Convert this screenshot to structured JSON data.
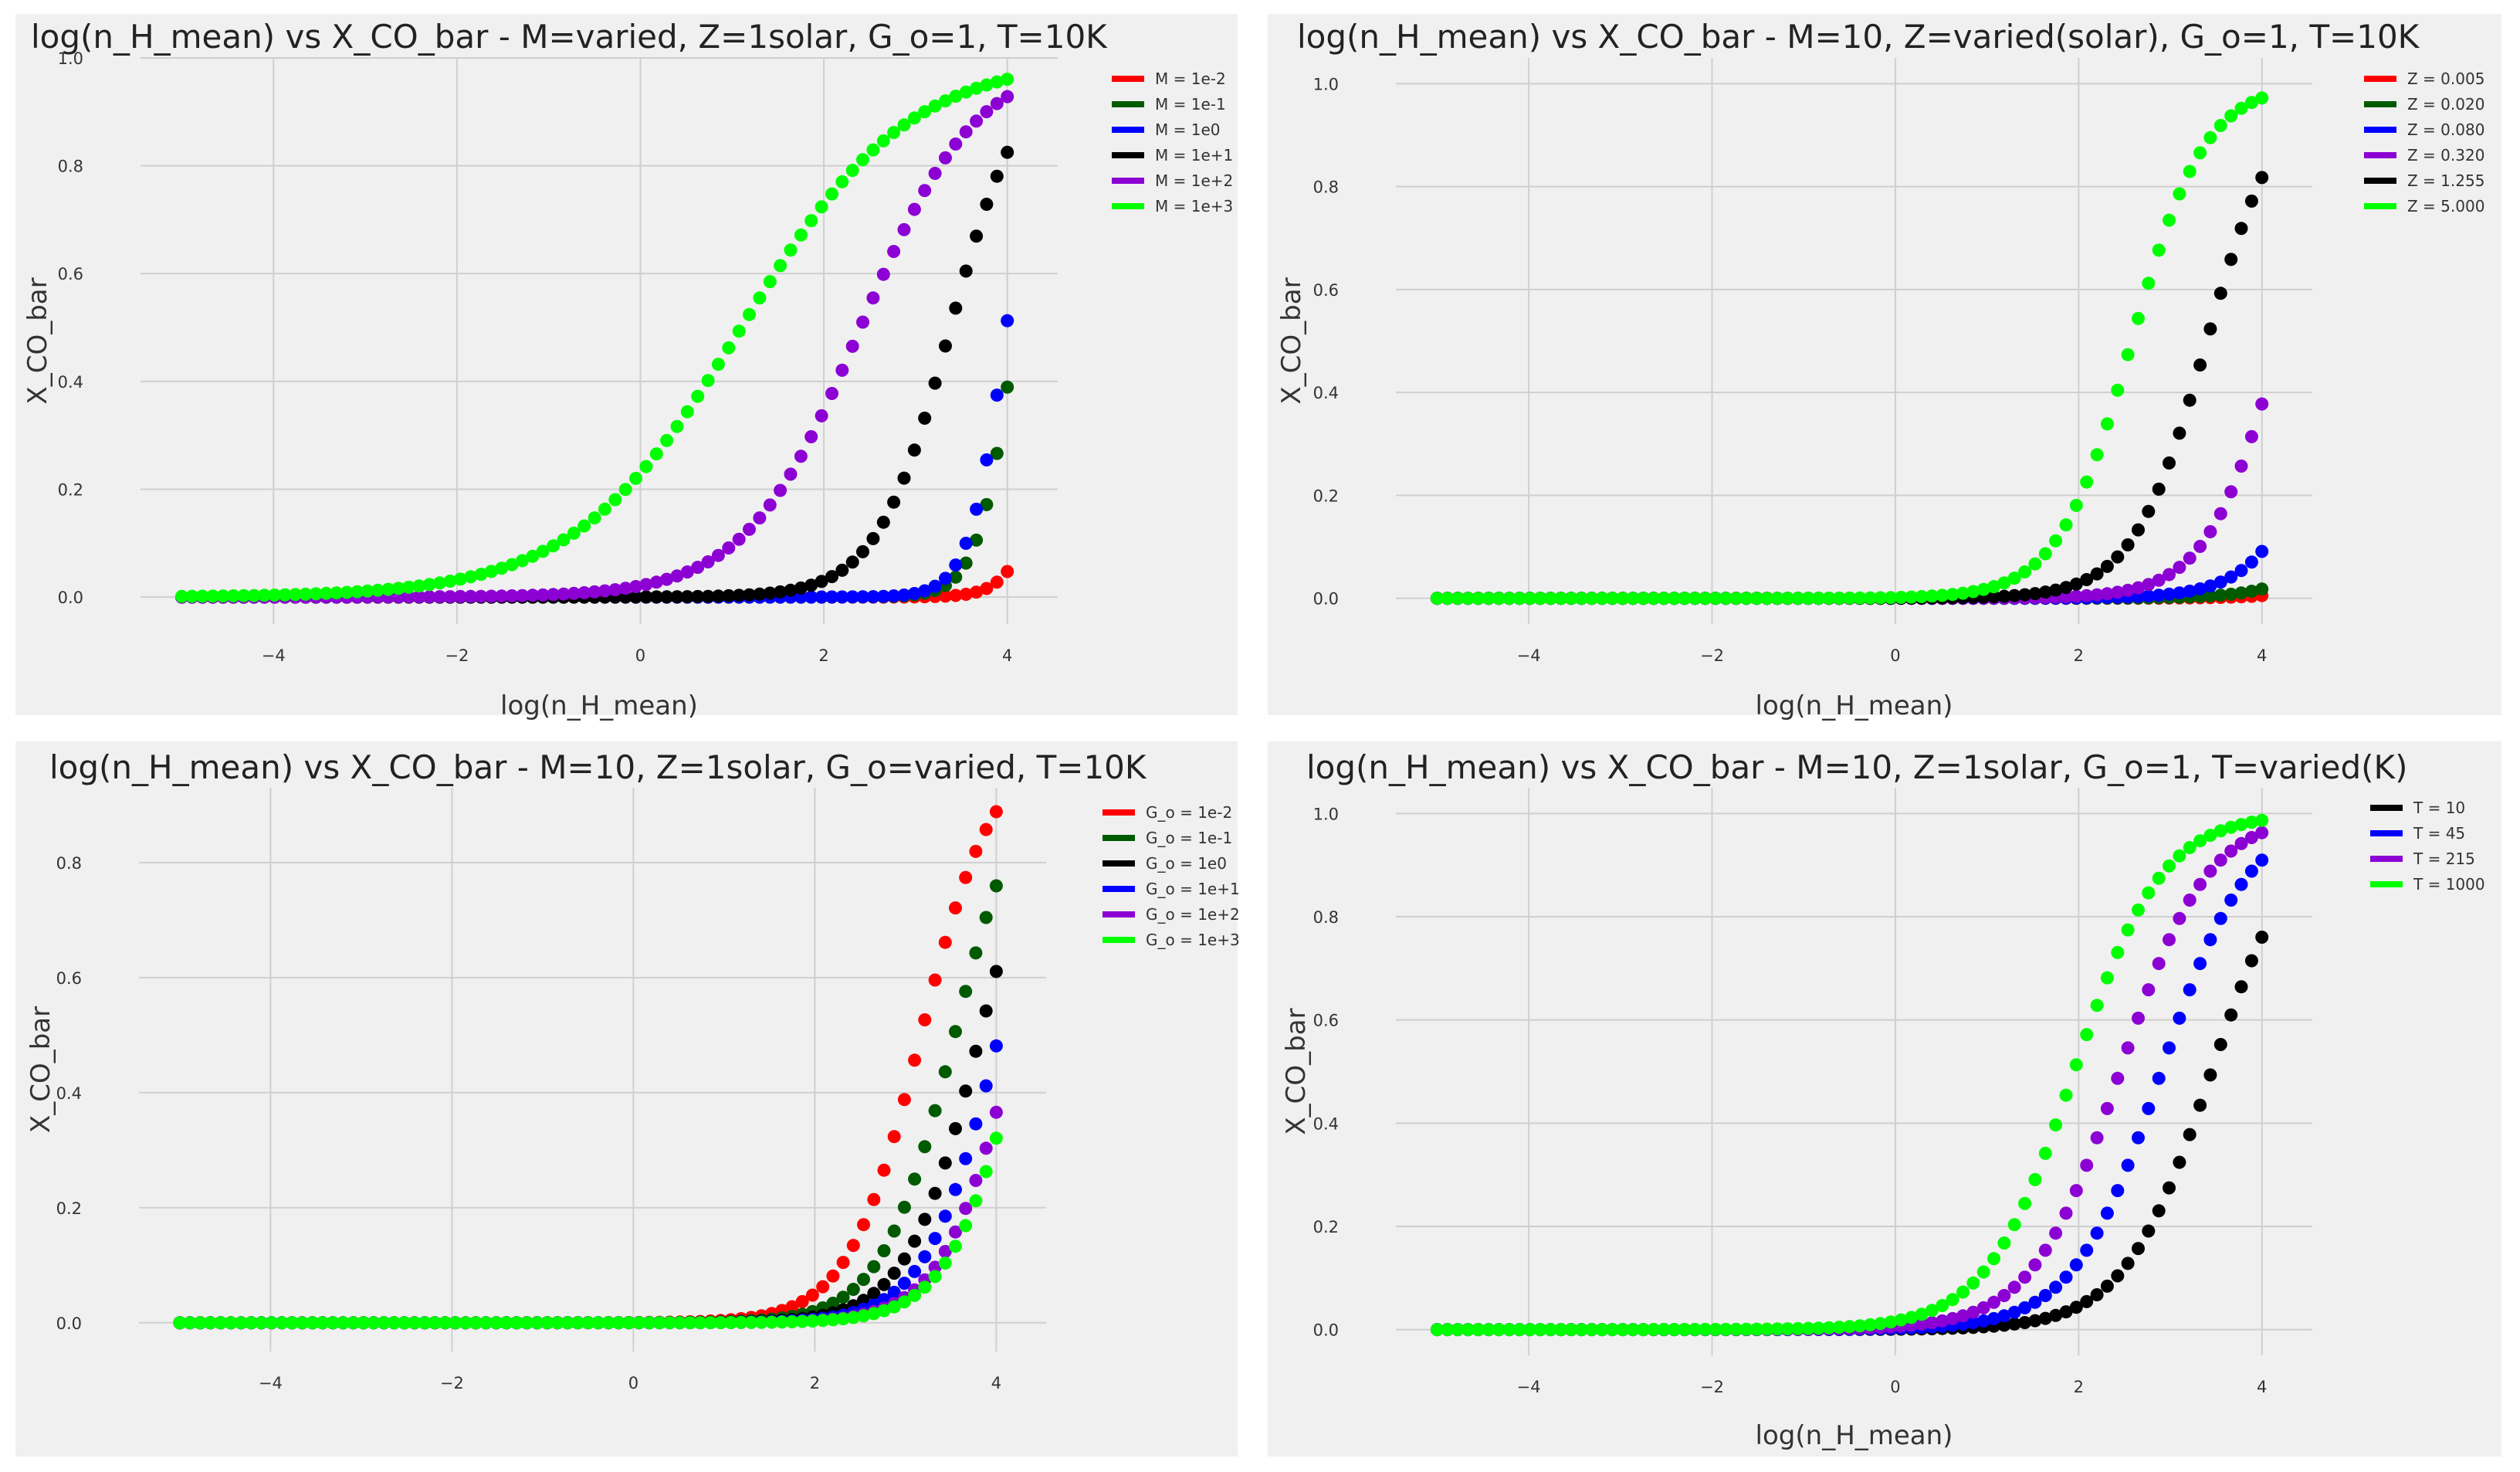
{
  "colors": {
    "red": "#ff0000",
    "darkgreen": "#005a00",
    "blue": "#0000ff",
    "black": "#000000",
    "purple": "#8c00d4",
    "lime": "#00ff00",
    "panel_bg": "#f0f0f0",
    "grid": "#cfcfcf"
  },
  "chart_data": [
    {
      "type": "scatter",
      "title": "log(n_H_mean) vs X_CO_bar - M=varied, Z=1solar, G_o=1, T=10K",
      "xlabel": "log(n_H_mean)",
      "ylabel": "X_CO_bar",
      "xlim": [
        -5.45,
        4.55
      ],
      "ylim": [
        -0.05,
        1.0
      ],
      "xticks": [
        -4,
        -2,
        0,
        2,
        4
      ],
      "yticks": [
        0.0,
        0.2,
        0.4,
        0.6,
        0.8,
        1.0
      ],
      "ytick_labels": [
        "0.0",
        "0.2",
        "0.4",
        "0.6",
        "0.8",
        "1.0"
      ],
      "grid": true,
      "legend_position": "top-right",
      "x_range": [
        -5,
        4
      ],
      "n_points": 81,
      "series": [
        {
          "name": "M = 1e-2",
          "color": "red",
          "curve": {
            "ymax": 1.0,
            "x50": 4.6,
            "k": 5.0
          }
        },
        {
          "name": "M = 1e-1",
          "color": "darkgreen",
          "curve": {
            "ymax": 1.0,
            "x50": 4.09,
            "k": 5.0
          }
        },
        {
          "name": "M = 1e0",
          "color": "blue",
          "curve": {
            "ymax": 1.0,
            "x50": 3.99,
            "k": 5.0
          }
        },
        {
          "name": "M = 1e+1",
          "color": "black",
          "curve": {
            "ymax": 1.0,
            "x50": 3.38,
            "k": 2.5
          }
        },
        {
          "name": "M = 1e+2",
          "color": "purple",
          "curve": {
            "ymax": 1.0,
            "x50": 2.4,
            "k": 1.6
          }
        },
        {
          "name": "M = 1e+3",
          "color": "lime",
          "curve": {
            "ymax": 1.0,
            "x50": 1.1,
            "k": 1.1
          }
        }
      ]
    },
    {
      "type": "scatter",
      "title": "log(n_H_mean) vs X_CO_bar - M=10, Z=varied(solar), G_o=1, T=10K",
      "xlabel": "log(n_H_mean)",
      "ylabel": "X_CO_bar",
      "xlim": [
        -5.45,
        4.55
      ],
      "ylim": [
        -0.05,
        1.05
      ],
      "xticks": [
        -4,
        -2,
        0,
        2,
        4
      ],
      "yticks": [
        0.0,
        0.2,
        0.4,
        0.6,
        0.8,
        1.0
      ],
      "ytick_labels": [
        "0.0",
        "0.2",
        "0.4",
        "0.6",
        "0.8",
        "1.0"
      ],
      "grid": true,
      "legend_position": "top-right",
      "x_range": [
        -5,
        4
      ],
      "n_points": 81,
      "series": [
        {
          "name": "Z = 0.005",
          "color": "red",
          "curve": {
            "ymax": 1.0,
            "x50": 6.1,
            "k": 2.5
          }
        },
        {
          "name": "Z = 0.020",
          "color": "darkgreen",
          "curve": {
            "ymax": 1.0,
            "x50": 5.6,
            "k": 2.5
          }
        },
        {
          "name": "Z = 0.080",
          "color": "blue",
          "curve": {
            "ymax": 1.0,
            "x50": 4.92,
            "k": 2.5
          }
        },
        {
          "name": "Z = 0.320",
          "color": "purple",
          "curve": {
            "ymax": 1.0,
            "x50": 4.2,
            "k": 2.5
          }
        },
        {
          "name": "Z = 1.255",
          "color": "black",
          "curve": {
            "ymax": 1.0,
            "x50": 3.4,
            "k": 2.5
          }
        },
        {
          "name": "Z = 5.000",
          "color": "lime",
          "curve": {
            "ymax": 1.0,
            "x50": 2.58,
            "k": 2.5
          }
        }
      ]
    },
    {
      "type": "scatter",
      "title": "log(n_H_mean) vs X_CO_bar - M=10, Z=1solar, G_o=varied, T=10K",
      "xlabel": "",
      "ylabel": "X_CO_bar",
      "xlim": [
        -5.45,
        4.55
      ],
      "ylim": [
        -0.05,
        0.93
      ],
      "xticks": [
        -4,
        -2,
        0,
        2,
        4
      ],
      "yticks": [
        0.0,
        0.2,
        0.4,
        0.6,
        0.8
      ],
      "ytick_labels": [
        "0.0",
        "0.2",
        "0.4",
        "0.6",
        "0.8"
      ],
      "grid": true,
      "legend_position": "top-right",
      "x_range": [
        -5,
        4
      ],
      "n_points": 81,
      "series": [
        {
          "name": "G_o = 1e-2",
          "color": "red",
          "curve": {
            "ymax": 1.0,
            "x50": 3.17,
            "k": 2.5
          }
        },
        {
          "name": "G_o = 1e-1",
          "color": "darkgreen",
          "curve": {
            "ymax": 1.0,
            "x50": 3.54,
            "k": 2.5
          }
        },
        {
          "name": "G_o = 1e0",
          "color": "black",
          "curve": {
            "ymax": 1.0,
            "x50": 3.82,
            "k": 2.5
          }
        },
        {
          "name": "G_o = 1e+1",
          "color": "blue",
          "curve": {
            "ymax": 1.0,
            "x50": 4.03,
            "k": 2.5
          }
        },
        {
          "name": "G_o = 1e+2",
          "color": "purple",
          "curve": {
            "ymax": 1.0,
            "x50": 4.22,
            "k": 2.5
          }
        },
        {
          "name": "G_o = 1e+3",
          "color": "lime",
          "curve": {
            "ymax": 1.0,
            "x50": 4.3,
            "k": 2.5
          }
        }
      ]
    },
    {
      "type": "scatter",
      "title": "log(n_H_mean) vs X_CO_bar - M=10, Z=1solar, G_o=1, T=varied(K)",
      "xlabel": "log(n_H_mean)",
      "ylabel": "X_CO_bar",
      "xlim": [
        -5.45,
        4.55
      ],
      "ylim": [
        -0.05,
        1.05
      ],
      "xticks": [
        -4,
        -2,
        0,
        2,
        4
      ],
      "yticks": [
        0.0,
        0.2,
        0.4,
        0.6,
        0.8,
        1.0
      ],
      "ytick_labels": [
        "0.0",
        "0.2",
        "0.4",
        "0.6",
        "0.8",
        "1.0"
      ],
      "grid": true,
      "legend_position": "top-right",
      "x_range": [
        -5,
        4
      ],
      "n_points": 81,
      "series": [
        {
          "name": "T = 10",
          "color": "black",
          "curve": {
            "ymax": 1.0,
            "x50": 3.45,
            "k": 2.1
          }
        },
        {
          "name": "T = 45",
          "color": "blue",
          "curve": {
            "ymax": 1.0,
            "x50": 2.9,
            "k": 2.1
          }
        },
        {
          "name": "T = 215",
          "color": "purple",
          "curve": {
            "ymax": 1.0,
            "x50": 2.45,
            "k": 2.1
          }
        },
        {
          "name": "T = 1000",
          "color": "lime",
          "curve": {
            "ymax": 1.0,
            "x50": 1.95,
            "k": 2.1
          }
        }
      ]
    }
  ]
}
